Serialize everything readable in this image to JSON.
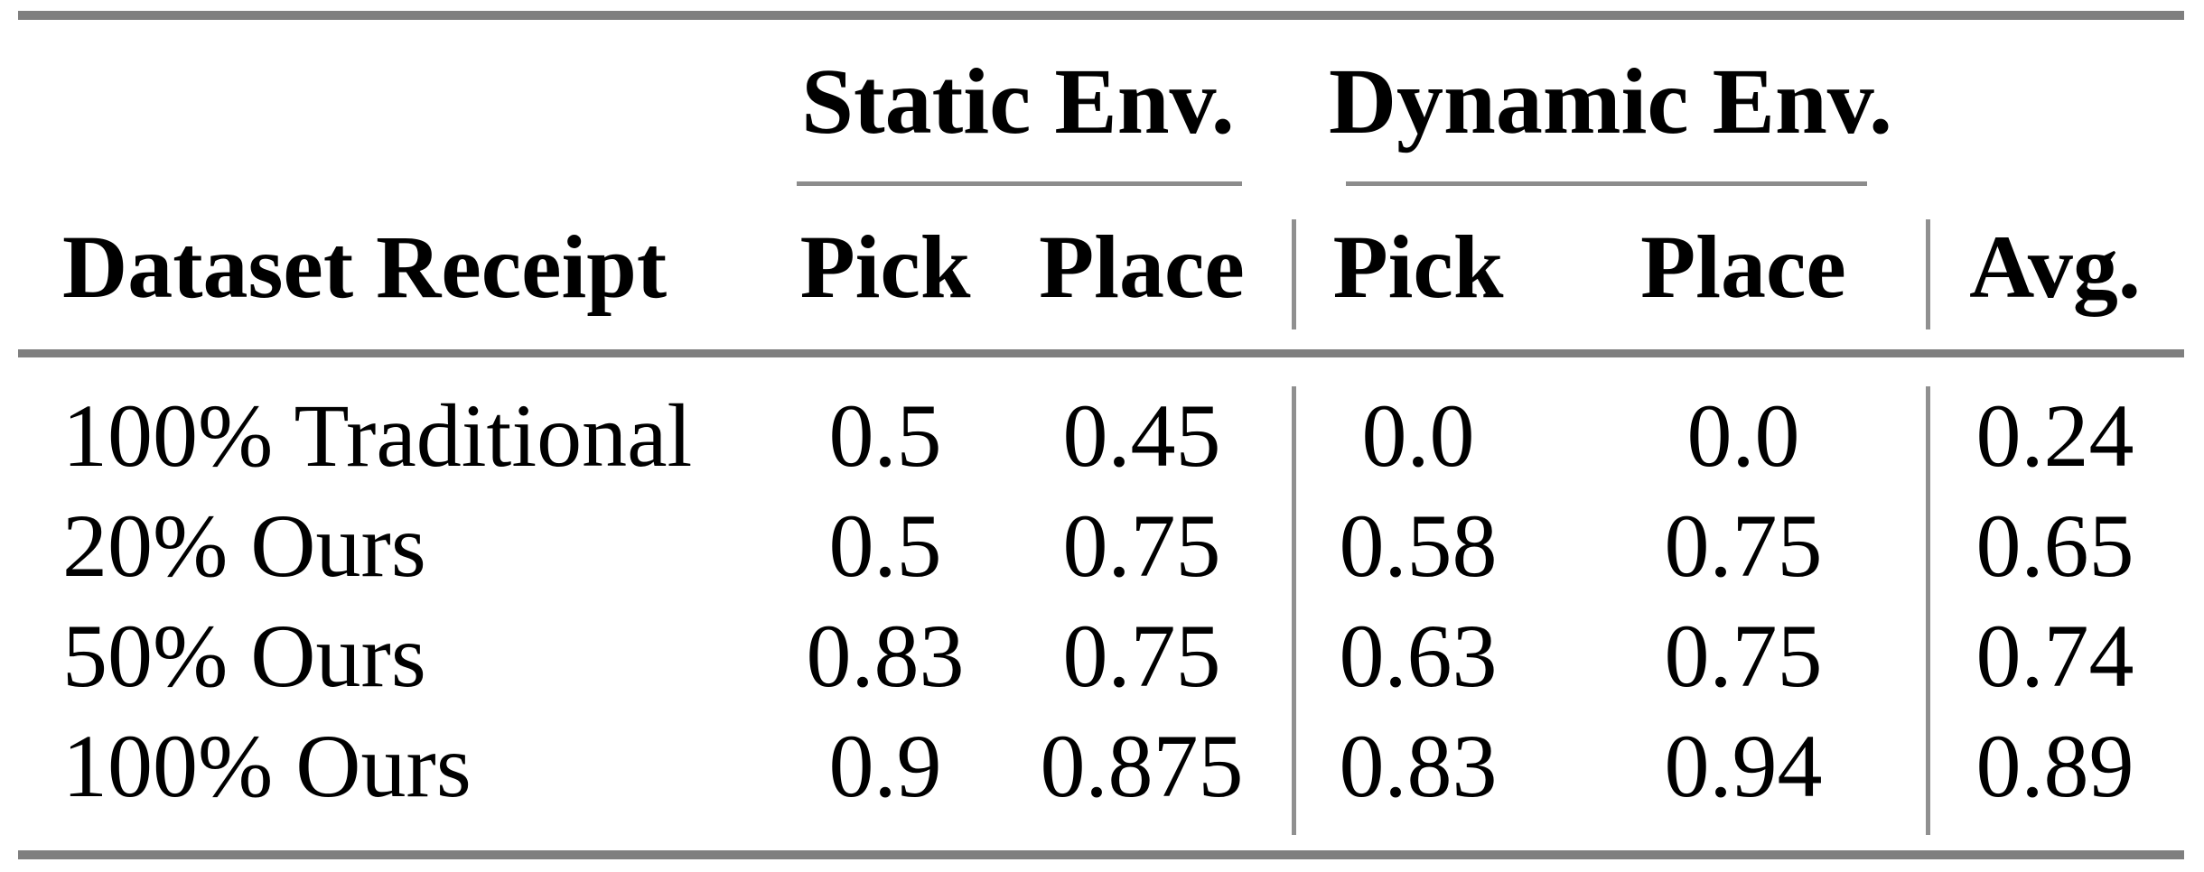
{
  "colors": {
    "background": "#ffffff",
    "text": "#000000",
    "rule_thick": "#7f7f7f",
    "rule_thin": "#8c8c8c",
    "rule_vertical": "#909090"
  },
  "table": {
    "group_headers": [
      {
        "label": "Static Env."
      },
      {
        "label": "Dynamic Env."
      }
    ],
    "column_headers": {
      "dataset": "Dataset Receipt",
      "static_pick": "Pick",
      "static_place": "Place",
      "dynamic_pick": "Pick",
      "dynamic_place": "Place",
      "avg": "Avg."
    },
    "rows": [
      {
        "cells": [
          "100% Traditional",
          "0.5",
          "0.45",
          "0.0",
          "0.0",
          "0.24"
        ]
      },
      {
        "cells": [
          "20% Ours",
          "0.5",
          "0.75",
          "0.58",
          "0.75",
          "0.65"
        ]
      },
      {
        "cells": [
          "50% Ours",
          "0.83",
          "0.75",
          "0.63",
          "0.75",
          "0.74"
        ]
      },
      {
        "cells": [
          "100% Ours",
          "0.9",
          "0.875",
          "0.83",
          "0.94",
          "0.89"
        ]
      }
    ]
  },
  "chart_data": {
    "type": "table",
    "columns": [
      "Dataset Receipt",
      "Static Env. Pick",
      "Static Env. Place",
      "Dynamic Env. Pick",
      "Dynamic Env. Place",
      "Avg."
    ],
    "rows": [
      [
        "100% Traditional",
        0.5,
        0.45,
        0.0,
        0.0,
        0.24
      ],
      [
        "20% Ours",
        0.5,
        0.75,
        0.58,
        0.75,
        0.65
      ],
      [
        "50% Ours",
        0.83,
        0.75,
        0.63,
        0.75,
        0.74
      ],
      [
        "100% Ours",
        0.9,
        0.875,
        0.83,
        0.94,
        0.89
      ]
    ]
  }
}
